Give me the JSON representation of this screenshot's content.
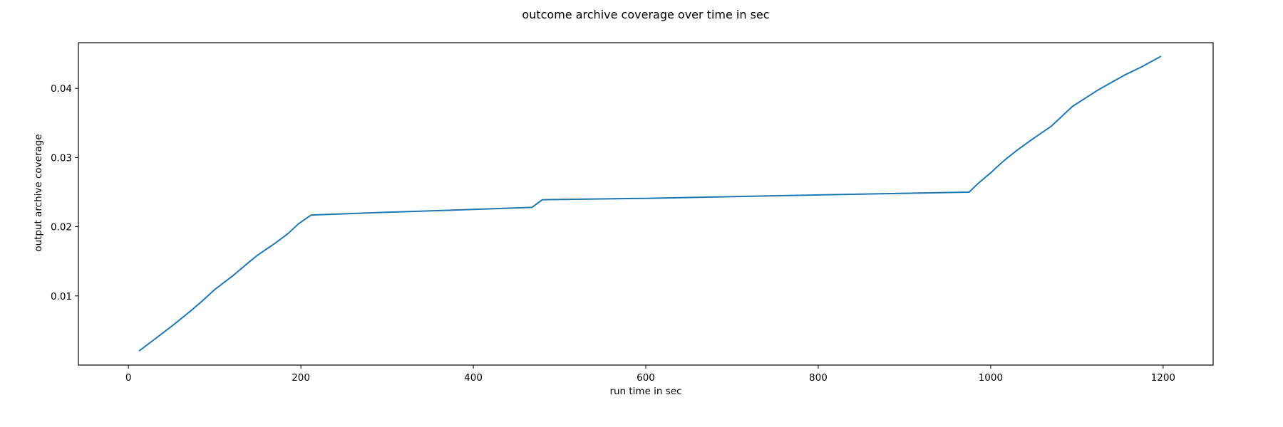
{
  "chart_data": {
    "type": "line",
    "title": "outcome archive coverage over time in sec",
    "xlabel": "run time in sec",
    "ylabel": "output archive coverage",
    "xlim": [
      -58,
      1258
    ],
    "ylim": [
      0.0,
      0.0466
    ],
    "xticks": [
      {
        "value": 0,
        "label": "0"
      },
      {
        "value": 200,
        "label": "200"
      },
      {
        "value": 400,
        "label": "400"
      },
      {
        "value": 600,
        "label": "600"
      },
      {
        "value": 800,
        "label": "800"
      },
      {
        "value": 1000,
        "label": "1000"
      },
      {
        "value": 1200,
        "label": "1200"
      }
    ],
    "yticks": [
      {
        "value": 0.01,
        "label": "0.01"
      },
      {
        "value": 0.02,
        "label": "0.02"
      },
      {
        "value": 0.03,
        "label": "0.03"
      },
      {
        "value": 0.04,
        "label": "0.04"
      }
    ],
    "grid": false,
    "colors": {
      "line": "#1f77b4"
    },
    "series": [
      {
        "x": [
          13,
          30,
          50,
          70,
          85,
          100,
          120,
          140,
          150,
          170,
          185,
          197,
          212,
          300,
          400,
          468,
          480,
          600,
          800,
          975,
          985,
          1000,
          1015,
          1030,
          1050,
          1070,
          1095,
          1125,
          1145,
          1155,
          1175,
          1197
        ],
        "y": [
          0.0021,
          0.0037,
          0.0056,
          0.0076,
          0.0092,
          0.0109,
          0.0128,
          0.0149,
          0.0159,
          0.0176,
          0.019,
          0.0204,
          0.0217,
          0.0221,
          0.0225,
          0.0228,
          0.0239,
          0.0241,
          0.0246,
          0.025,
          0.0262,
          0.0278,
          0.0295,
          0.031,
          0.0328,
          0.0345,
          0.0374,
          0.0398,
          0.0412,
          0.0419,
          0.0431,
          0.0446
        ]
      }
    ]
  }
}
